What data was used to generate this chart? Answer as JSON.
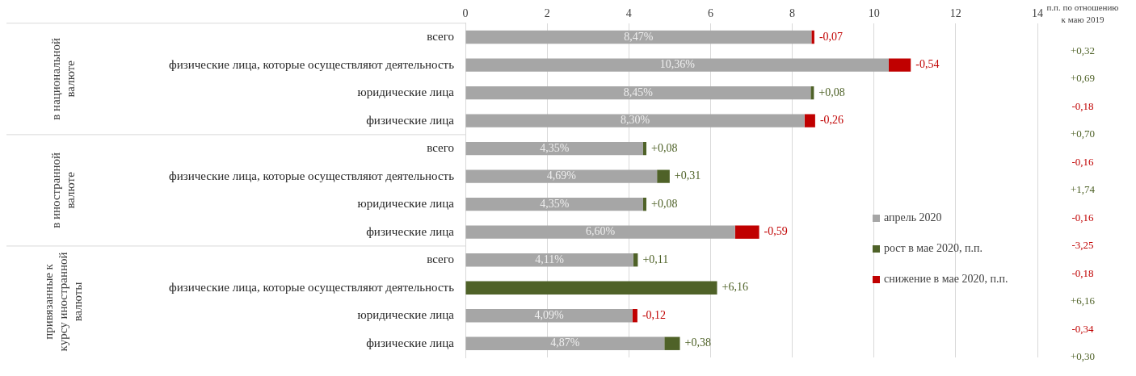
{
  "chart_data": {
    "type": "bar",
    "orientation": "horizontal",
    "stacked": true,
    "categories": [
      "всего",
      "физические лица, которые осуществляют деятельность",
      "юридические лица",
      "физические лица",
      "всего",
      "физические лица, которые осуществляют деятельность",
      "юридические лица",
      "физические лица",
      "всего",
      "физические лица, которые осуществляют деятельность",
      "юридические лица",
      "физические лица"
    ],
    "series": [
      {
        "name": "апрель 2020",
        "color": "#a6a6a6",
        "values": [
          8.47,
          10.36,
          8.45,
          8.3,
          4.35,
          4.69,
          4.35,
          6.6,
          4.11,
          null,
          4.09,
          4.87
        ],
        "value_labels": [
          "8,47%",
          "10,36%",
          "8,45%",
          "8,30%",
          "4,35%",
          "4,69%",
          "4,35%",
          "6,60%",
          "4,11%",
          null,
          "4,09%",
          "4,87%"
        ]
      },
      {
        "name": "рост в мае 2020, п.п.",
        "color": "#4f6228",
        "values": [
          null,
          null,
          0.08,
          null,
          0.08,
          0.31,
          0.08,
          null,
          0.11,
          6.16,
          null,
          0.38
        ],
        "value_labels": [
          null,
          null,
          "+0,08",
          null,
          "+0,08",
          "+0,31",
          "+0,08",
          null,
          "+0,11",
          "+6,16",
          null,
          "+0,38"
        ]
      },
      {
        "name": "снижение в мае 2020, п.п.",
        "color": "#c00000",
        "values": [
          -0.07,
          -0.54,
          null,
          -0.26,
          null,
          null,
          null,
          -0.59,
          null,
          null,
          -0.12,
          null
        ],
        "base": [
          8.54,
          10.9,
          null,
          8.56,
          null,
          null,
          null,
          7.19,
          null,
          null,
          4.21,
          null
        ],
        "value_labels": [
          "-0,07",
          "-0,54",
          null,
          "-0,26",
          null,
          null,
          null,
          "-0,59",
          null,
          null,
          "-0,12",
          null
        ]
      }
    ],
    "xlim": [
      0,
      14
    ],
    "xticks": [
      0,
      2,
      4,
      6,
      8,
      10,
      12,
      14
    ],
    "grid": "x",
    "legend": "right",
    "annotations": [
      "в национальной валюте",
      "в иностранной валюте",
      "привязанные к курсу иностранной валюты",
      "п.п. по отношению к маю 2019",
      "+0,32",
      "+0,69",
      "-0,18",
      "+0,70",
      "-0,16",
      "+1,74",
      "-0,16",
      "-3,25",
      "-0,18",
      "+6,16",
      "-0,34",
      "+0,30"
    ]
  }
}
